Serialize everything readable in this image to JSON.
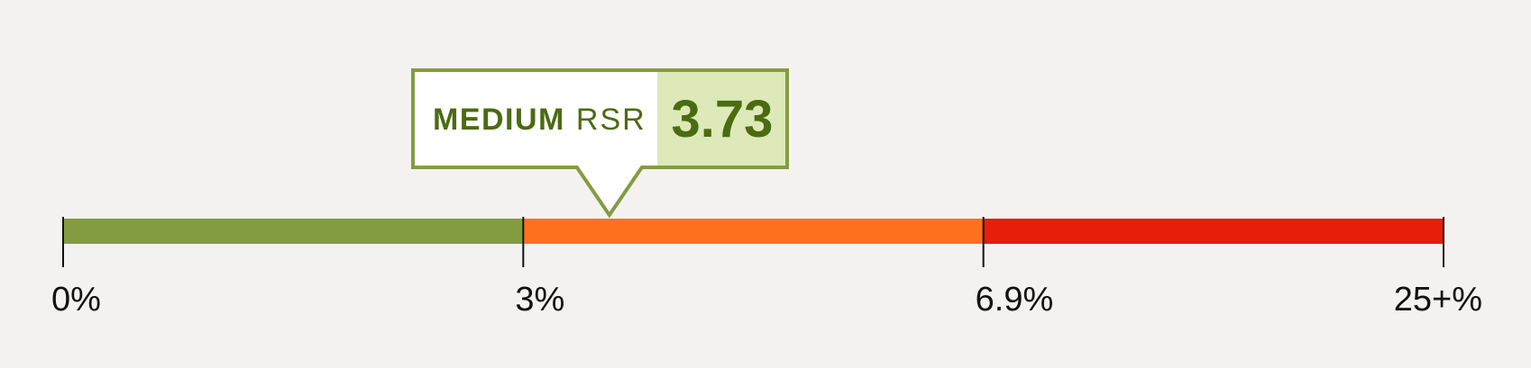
{
  "chart_data": {
    "type": "bar",
    "segments": [
      {
        "from": 0,
        "to": 3,
        "color": "#839c41"
      },
      {
        "from": 3,
        "to": 6.9,
        "color": "#fe6f1e"
      },
      {
        "from": 6.9,
        "to": 25,
        "color": "#e61e0a"
      }
    ],
    "ticks": [
      {
        "value": 0,
        "label": "0%"
      },
      {
        "value": 3,
        "label": "3%"
      },
      {
        "value": 6.9,
        "label": "6.9%"
      },
      {
        "value": 25,
        "label": "25+%"
      }
    ],
    "marker": {
      "value": 3.73,
      "value_label": "3.73",
      "level": "MEDIUM",
      "metric": "RSR"
    },
    "xlim": [
      0,
      25
    ]
  },
  "colors": {
    "background": "#f3f2f0",
    "callout_border": "#839c41",
    "callout_value_bg": "#dde9b9",
    "callout_text": "#4b6b11",
    "tick": "#111111"
  }
}
